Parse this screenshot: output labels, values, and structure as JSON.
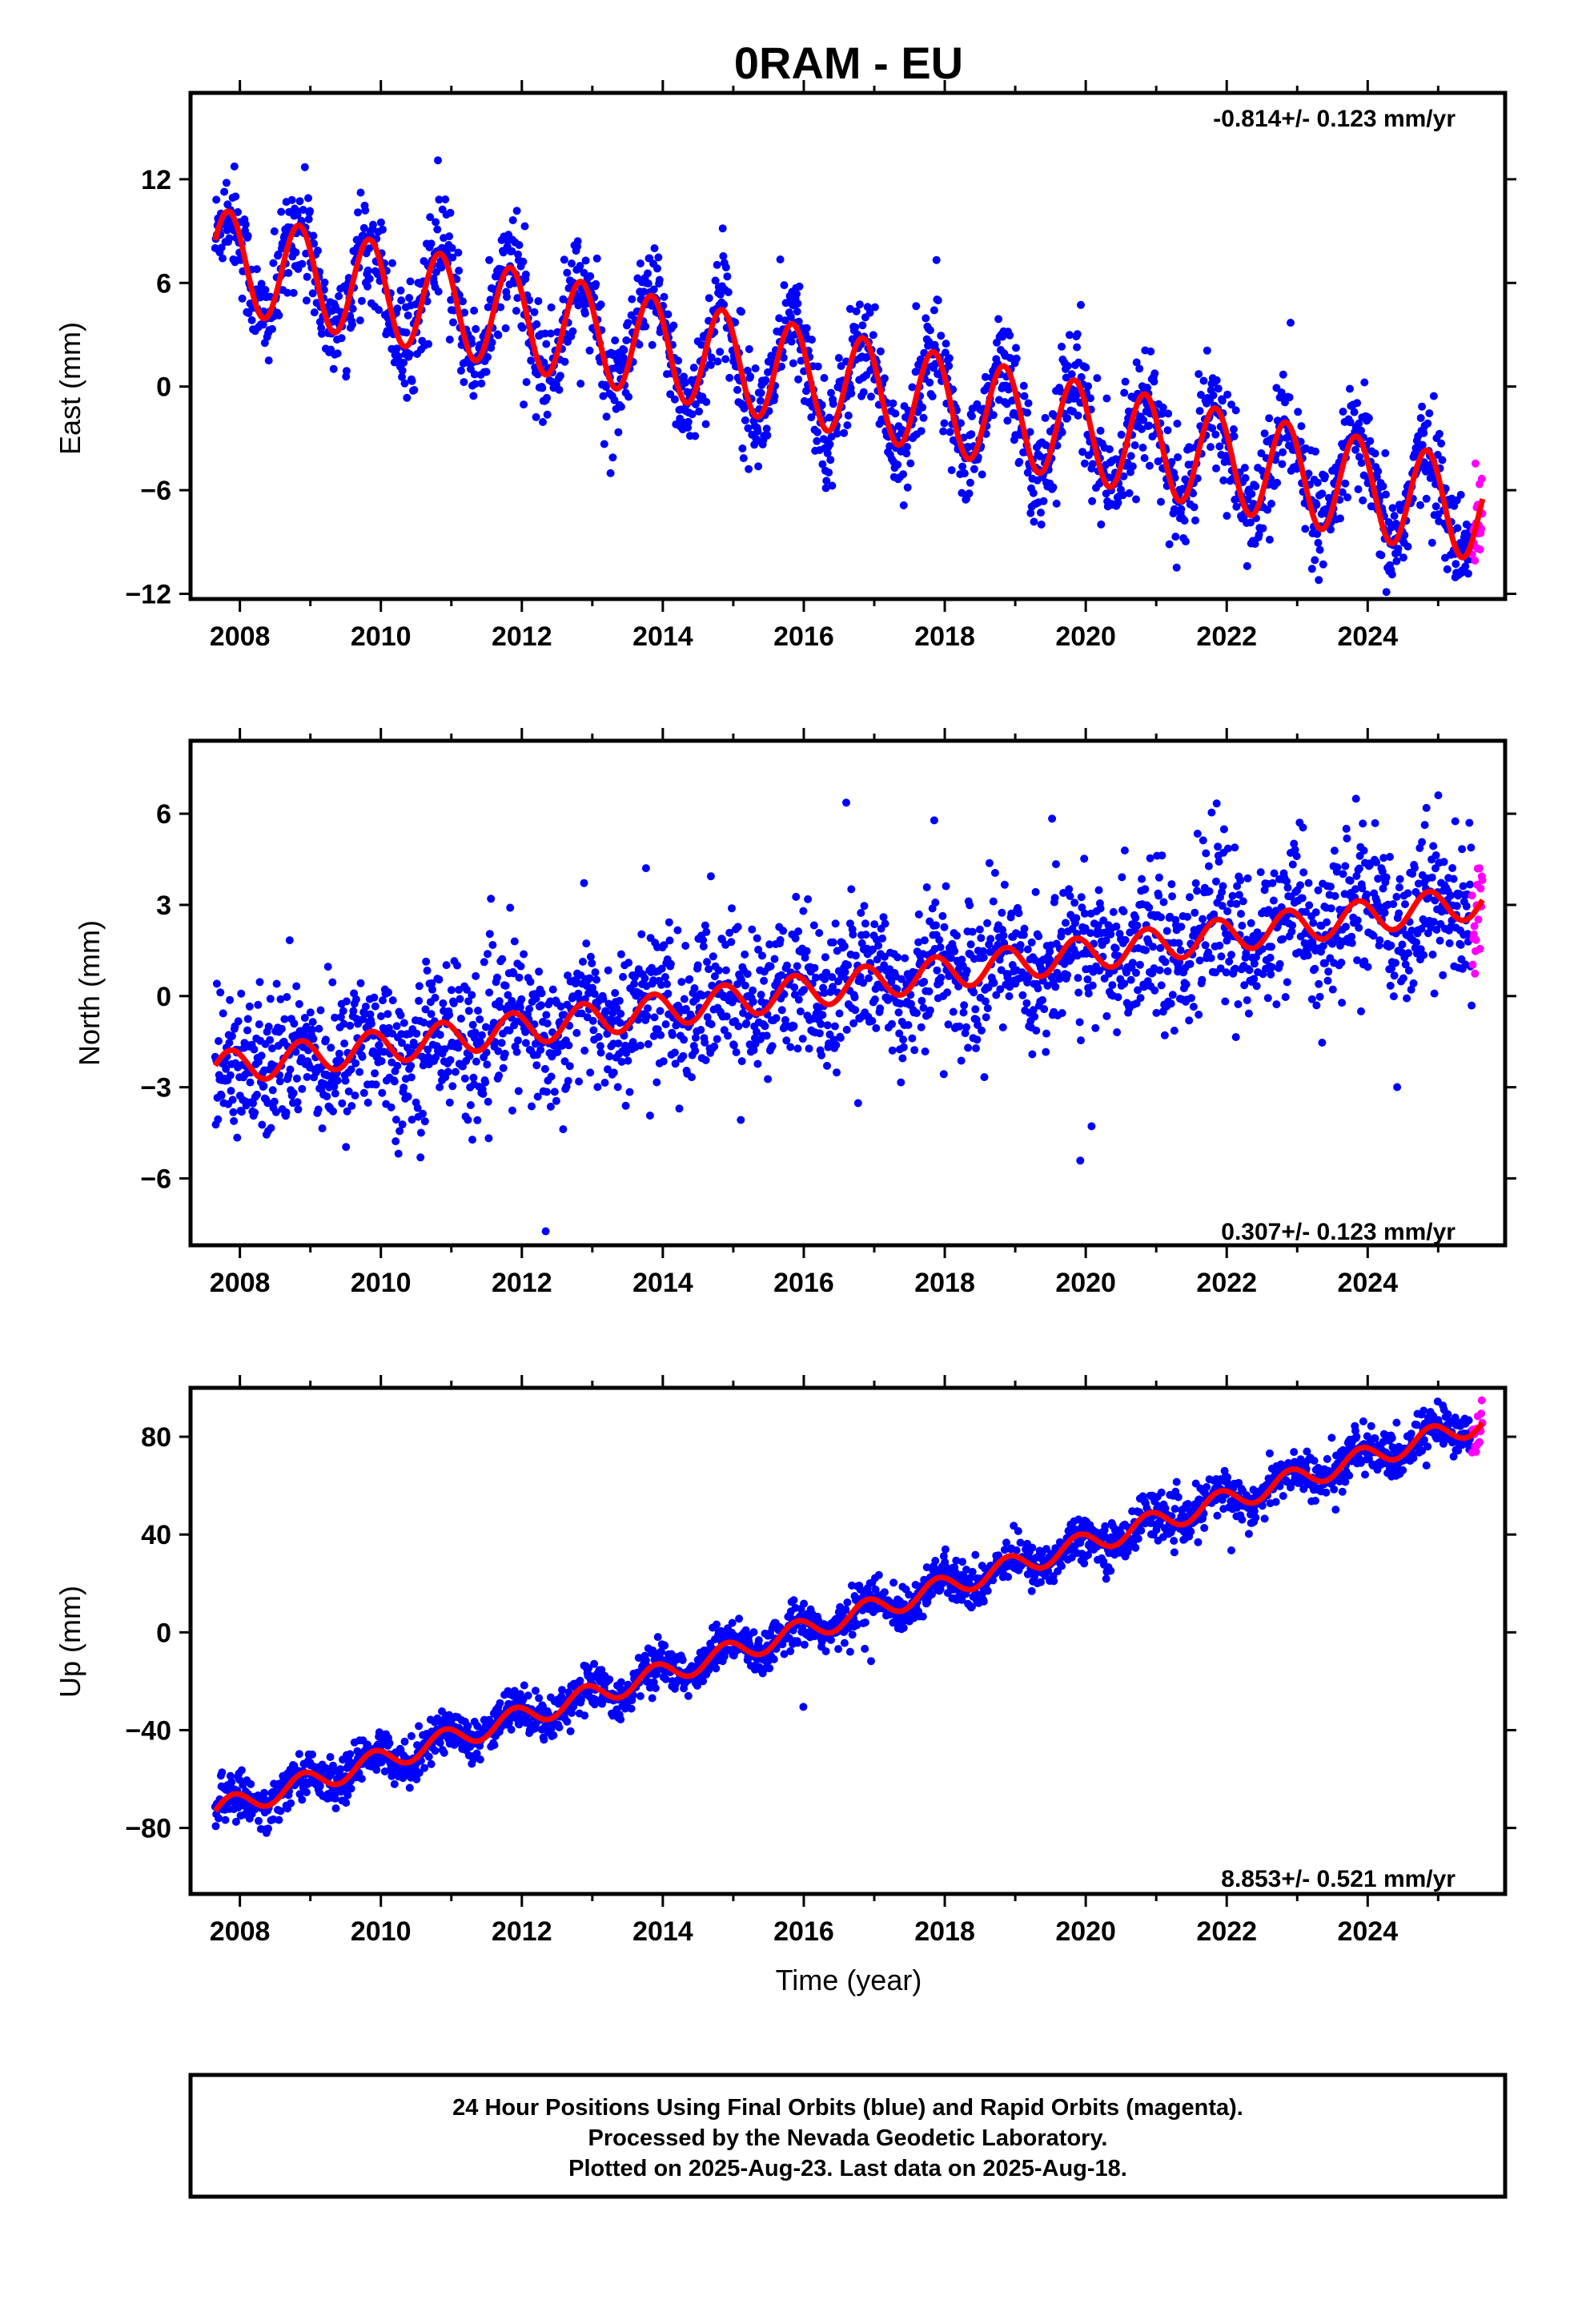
{
  "title": "0RAM - EU",
  "colors": {
    "final": "#0000ff",
    "rapid": "#ff00ff",
    "model": "#ff0000",
    "frame": "#000000"
  },
  "chart_data": [
    {
      "type": "scatter",
      "ylabel": "East (mm)",
      "xlim": [
        2007.3,
        2025.95
      ],
      "ylim": [
        -12.3,
        17.0
      ],
      "xticks": [
        "2008",
        "2010",
        "2012",
        "2014",
        "2016",
        "2018",
        "2020",
        "2022",
        "2024"
      ],
      "yticks": [
        "12",
        "6",
        "0",
        "−6",
        "−12"
      ],
      "ytick_values": [
        12,
        6,
        0,
        -6,
        -12
      ],
      "rate": "-0.814+/- 0.123 mm/yr",
      "rate_position": "top-right",
      "model": {
        "start": 2007.65,
        "end": 2025.63,
        "offset": 7.4,
        "slope": -0.814,
        "amplitude": 2.9,
        "phase": 0.38,
        "noise": 1.5
      },
      "series": [
        {
          "name": "Final Orbits (blue)",
          "x_range": [
            2007.65,
            2025.48
          ]
        },
        {
          "name": "Rapid Orbits (magenta)",
          "x_range": [
            2025.48,
            2025.63
          ]
        }
      ]
    },
    {
      "type": "scatter",
      "ylabel": "North (mm)",
      "xlim": [
        2007.3,
        2025.95
      ],
      "ylim": [
        -8.2,
        8.4
      ],
      "xticks": [
        "2008",
        "2010",
        "2012",
        "2014",
        "2016",
        "2018",
        "2020",
        "2022",
        "2024"
      ],
      "yticks": [
        "6",
        "3",
        "0",
        "−3",
        "−6"
      ],
      "ytick_values": [
        6,
        3,
        0,
        -3,
        -6
      ],
      "rate": "0.307+/- 0.123 mm/yr",
      "rate_position": "bottom-right",
      "model": {
        "start": 2007.65,
        "end": 2025.63,
        "offset": -2.4,
        "slope": 0.307,
        "amplitude": 0.55,
        "phase": 0.2,
        "noise": 1.2
      },
      "series": [
        {
          "name": "Final Orbits (blue)",
          "x_range": [
            2007.65,
            2025.48
          ]
        },
        {
          "name": "Rapid Orbits (magenta)",
          "x_range": [
            2025.48,
            2025.63
          ]
        }
      ]
    },
    {
      "type": "scatter",
      "ylabel": "Up (mm)",
      "xlabel": "Time (year)",
      "xlim": [
        2007.3,
        2025.95
      ],
      "ylim": [
        -107,
        100
      ],
      "xticks": [
        "2008",
        "2010",
        "2012",
        "2014",
        "2016",
        "2018",
        "2020",
        "2022",
        "2024"
      ],
      "yticks": [
        "80",
        "40",
        "0",
        "−40",
        "−80"
      ],
      "ytick_values": [
        80,
        40,
        0,
        -40,
        -80
      ],
      "rate": "8.853+/- 0.521 mm/yr",
      "rate_position": "bottom-right",
      "model": {
        "start": 2007.65,
        "end": 2025.63,
        "offset": -73.0,
        "slope": 8.853,
        "amplitude": 4.5,
        "phase": 0.0,
        "noise": 4.5
      },
      "series": [
        {
          "name": "Final Orbits (blue)",
          "x_range": [
            2007.65,
            2025.48
          ]
        },
        {
          "name": "Rapid Orbits (magenta)",
          "x_range": [
            2025.48,
            2025.63
          ]
        }
      ]
    }
  ],
  "footer": {
    "line1": "24 Hour Positions Using Final Orbits (blue) and Rapid Orbits (magenta).",
    "line2": "Processed by the Nevada Geodetic Laboratory.",
    "line3": "Plotted on 2025-Aug-23. Last data on 2025-Aug-18."
  }
}
